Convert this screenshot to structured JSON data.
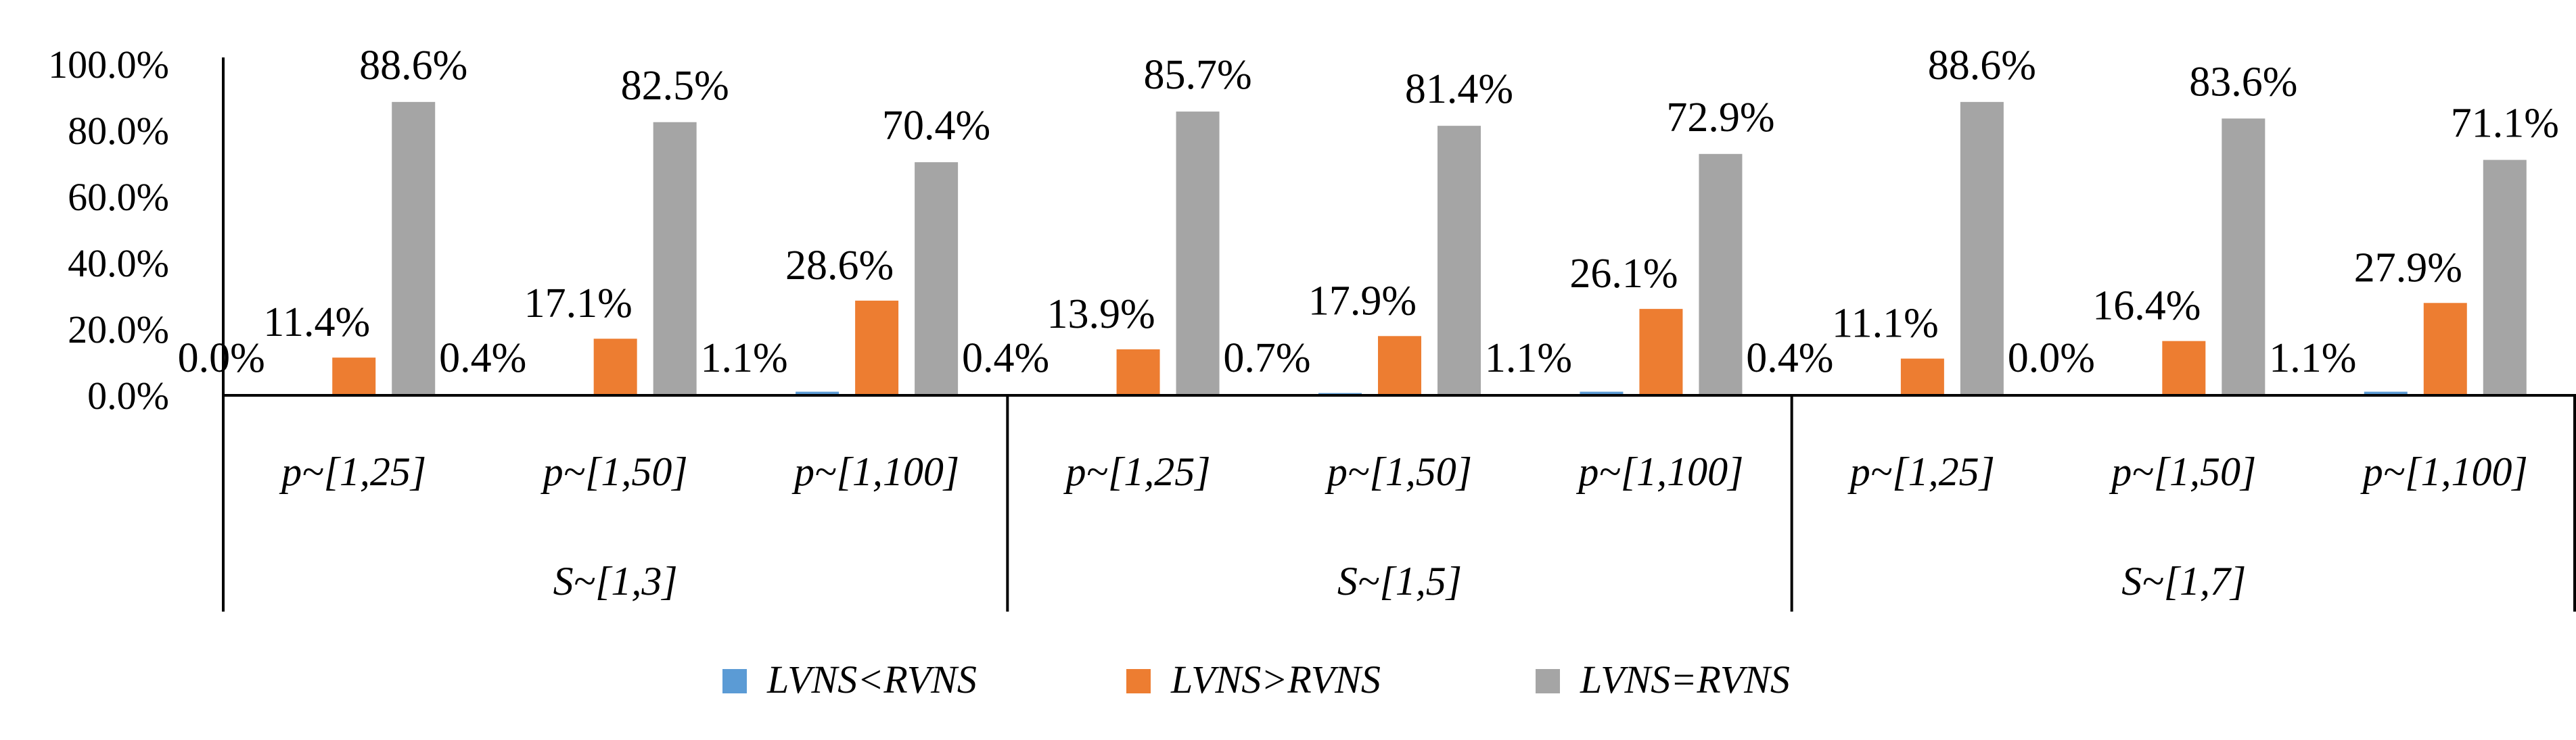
{
  "chart_data": {
    "type": "bar",
    "title": "",
    "xlabel": "",
    "ylabel": "",
    "ylim": [
      0,
      100
    ],
    "y_ticks": [
      "0.0%",
      "20.0%",
      "40.0%",
      "60.0%",
      "80.0%",
      "100.0%"
    ],
    "y_tick_values": [
      0,
      20,
      40,
      60,
      80,
      100
    ],
    "grid": false,
    "legend_position": "bottom",
    "groups": [
      {
        "label": "S~[1,3]",
        "categories": [
          "p~[1,25]",
          "p~[1,50]",
          "p~[1,100]"
        ]
      },
      {
        "label": "S~[1,5]",
        "categories": [
          "p~[1,25]",
          "p~[1,50]",
          "p~[1,100]"
        ]
      },
      {
        "label": "S~[1,7]",
        "categories": [
          "p~[1,25]",
          "p~[1,50]",
          "p~[1,100]"
        ]
      }
    ],
    "series": [
      {
        "name": "LVNS<RVNS",
        "color": "#5B9BD5",
        "values": [
          0.0,
          0.4,
          1.1,
          0.4,
          0.7,
          1.1,
          0.4,
          0.0,
          1.1
        ],
        "labels": [
          "0.0%",
          "0.4%",
          "1.1%",
          "0.4%",
          "0.7%",
          "1.1%",
          "0.4%",
          "0.0%",
          "1.1%"
        ]
      },
      {
        "name": "LVNS>RVNS",
        "color": "#ED7D31",
        "values": [
          11.4,
          17.1,
          28.6,
          13.9,
          17.9,
          26.1,
          11.1,
          16.4,
          27.9
        ],
        "labels": [
          "11.4%",
          "17.1%",
          "28.6%",
          "13.9%",
          "17.9%",
          "26.1%",
          "11.1%",
          "16.4%",
          "27.9%"
        ]
      },
      {
        "name": "LVNS=RVNS",
        "color": "#A5A5A5",
        "values": [
          88.6,
          82.5,
          70.4,
          85.7,
          81.4,
          72.9,
          88.6,
          83.6,
          71.1
        ],
        "labels": [
          "88.6%",
          "82.5%",
          "70.4%",
          "85.7%",
          "81.4%",
          "72.9%",
          "88.6%",
          "83.6%",
          "71.1%"
        ]
      }
    ]
  }
}
